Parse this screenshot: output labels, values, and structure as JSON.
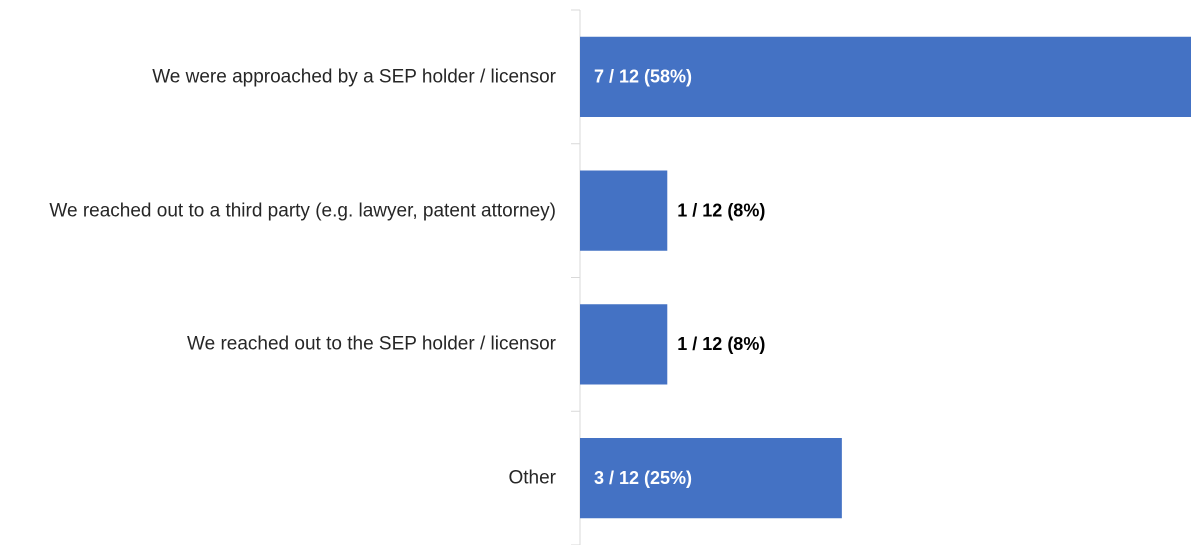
{
  "chart_data": {
    "type": "barh",
    "categories": [
      "We were approached by a SEP holder / licensor",
      "We reached out to a third party (e.g. lawyer, patent attorney)",
      "We reached out to the SEP holder / licensor",
      "Other"
    ],
    "values": [
      7,
      1,
      1,
      3
    ],
    "value_labels": [
      "7 / 12 (58%)",
      "1 / 12 (8%)",
      "1 / 12 (8%)",
      "3 / 12 (25%)"
    ],
    "color": "#4472c4",
    "xlim": [
      0,
      7
    ]
  }
}
